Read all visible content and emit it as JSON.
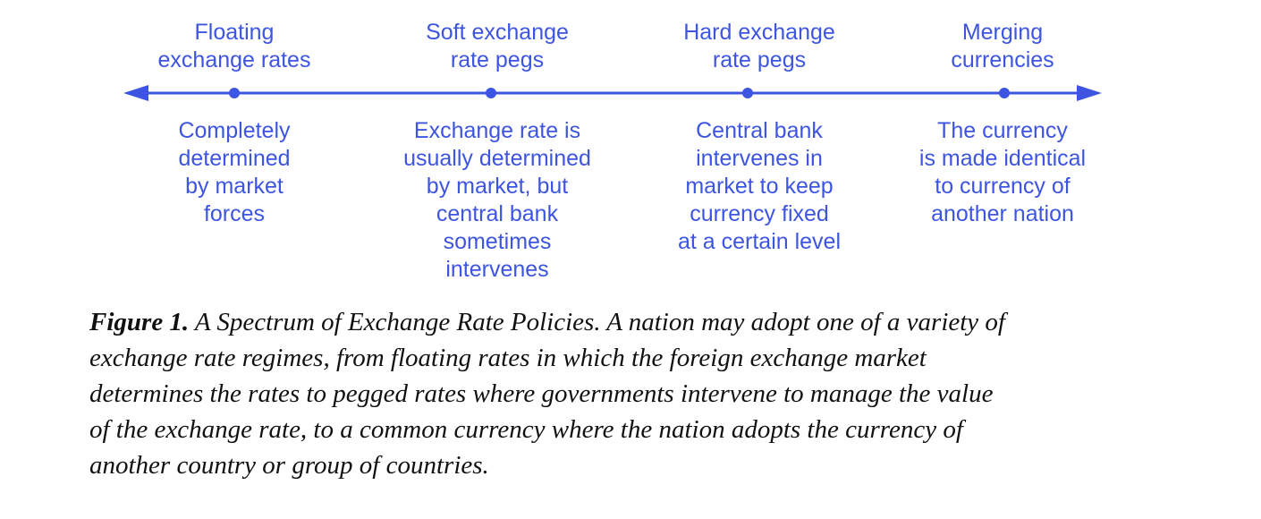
{
  "spectrum": {
    "line_color": "#3d55e0",
    "stops": [
      {
        "title": "Floating\nexchange rates",
        "description": "Completely\ndetermined\nby market\nforces"
      },
      {
        "title": "Soft exchange\nrate pegs",
        "description": "Exchange rate is\nusually determined\nby market, but\ncentral bank\nsometimes\nintervenes"
      },
      {
        "title": "Hard exchange\nrate pegs",
        "description": "Central bank\nintervenes in\nmarket to keep\ncurrency fixed\nat a certain level"
      },
      {
        "title": "Merging\ncurrencies",
        "description": "The currency\nis made identical\nto currency of\nanother nation"
      }
    ]
  },
  "caption": {
    "label": "Figure 1.",
    "text": " A Spectrum of Exchange Rate Policies. A nation may adopt one of a variety of\nexchange rate regimes, from floating rates in which the foreign exchange market\ndetermines the rates to pegged rates where governments intervene to manage the value\nof the exchange rate, to a common currency where the nation adopts the currency of\nanother country or group of countries."
  }
}
